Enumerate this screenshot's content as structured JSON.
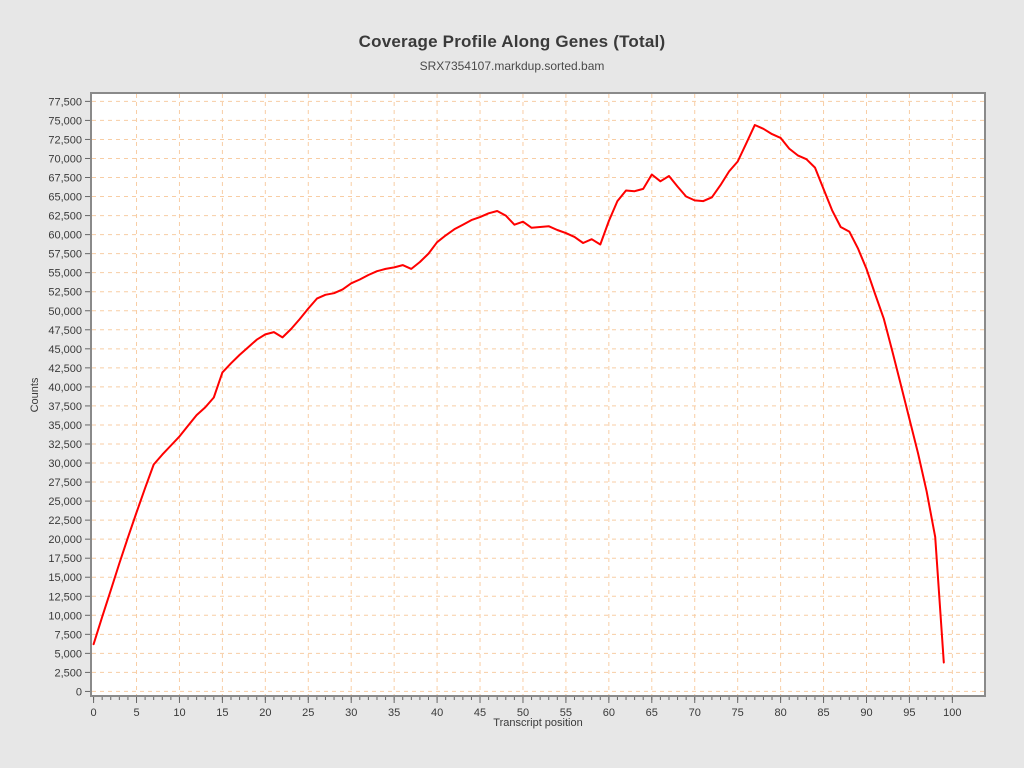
{
  "chart_data": {
    "type": "line",
    "title": "Coverage Profile Along Genes (Total)",
    "subtitle": "SRX7354107.markdup.sorted.bam",
    "xlabel": "Transcript position",
    "ylabel": "Counts",
    "legend": "none",
    "grid": "dashed",
    "grid_color": "#f8cda4",
    "plot_bg": "#ffffff",
    "outer_bg": "#e7e7e7",
    "frame_color": "#8a8a8a",
    "tick_color": "#666666",
    "xlim": [
      -0.3,
      103.8
    ],
    "ylim": [
      -600,
      78600
    ],
    "x_ticks": [
      0,
      5,
      10,
      15,
      20,
      25,
      30,
      35,
      40,
      45,
      50,
      55,
      60,
      65,
      70,
      75,
      80,
      85,
      90,
      95,
      100
    ],
    "x_minor_tick_step": 1,
    "y_ticks": [
      0,
      2500,
      5000,
      7500,
      10000,
      12500,
      15000,
      17500,
      20000,
      22500,
      25000,
      27500,
      30000,
      32500,
      35000,
      37500,
      40000,
      42500,
      45000,
      47500,
      50000,
      52500,
      55000,
      57500,
      60000,
      62500,
      65000,
      67500,
      70000,
      72500,
      75000,
      77500
    ],
    "series": [
      {
        "name": "SRX7354107.markdup.sorted.bam",
        "color": "#ff0000",
        "x": [
          0,
          1,
          2,
          3,
          4,
          5,
          6,
          7,
          8,
          9,
          10,
          11,
          12,
          13,
          14,
          15,
          16,
          17,
          18,
          19,
          20,
          21,
          22,
          23,
          24,
          25,
          26,
          27,
          28,
          29,
          30,
          31,
          32,
          33,
          34,
          35,
          36,
          37,
          38,
          39,
          40,
          41,
          42,
          43,
          44,
          45,
          46,
          47,
          48,
          49,
          50,
          51,
          52,
          53,
          54,
          55,
          56,
          57,
          58,
          59,
          60,
          61,
          62,
          63,
          64,
          65,
          66,
          67,
          68,
          69,
          70,
          71,
          72,
          73,
          74,
          75,
          76,
          77,
          78,
          79,
          80,
          81,
          82,
          83,
          84,
          85,
          86,
          87,
          88,
          89,
          90,
          91,
          92,
          93,
          94,
          95,
          96,
          97,
          98,
          99
        ],
        "values": [
          6200,
          9800,
          13300,
          16800,
          20200,
          23500,
          26700,
          29800,
          31100,
          32300,
          33500,
          34900,
          36300,
          37300,
          38600,
          41900,
          43100,
          44200,
          45200,
          46200,
          46900,
          47200,
          46500,
          47600,
          48900,
          50300,
          51600,
          52100,
          52300,
          52800,
          53600,
          54100,
          54700,
          55200,
          55500,
          55700,
          56000,
          55500,
          56400,
          57500,
          59000,
          59900,
          60700,
          61300,
          61900,
          62300,
          62800,
          63100,
          62500,
          61300,
          61700,
          60900,
          61000,
          61100,
          60600,
          60200,
          59700,
          58900,
          59400,
          58700,
          61800,
          64400,
          65800,
          65700,
          66000,
          67900,
          67000,
          67700,
          66300,
          65000,
          64500,
          64400,
          64900,
          66500,
          68300,
          69600,
          72000,
          74400,
          73900,
          73200,
          72700,
          71300,
          70400,
          69900,
          68800,
          66000,
          63200,
          61000,
          60400,
          58200,
          55500,
          52200,
          49000,
          44700,
          40300,
          35800,
          31300,
          26300,
          20300,
          3800
        ]
      }
    ]
  }
}
